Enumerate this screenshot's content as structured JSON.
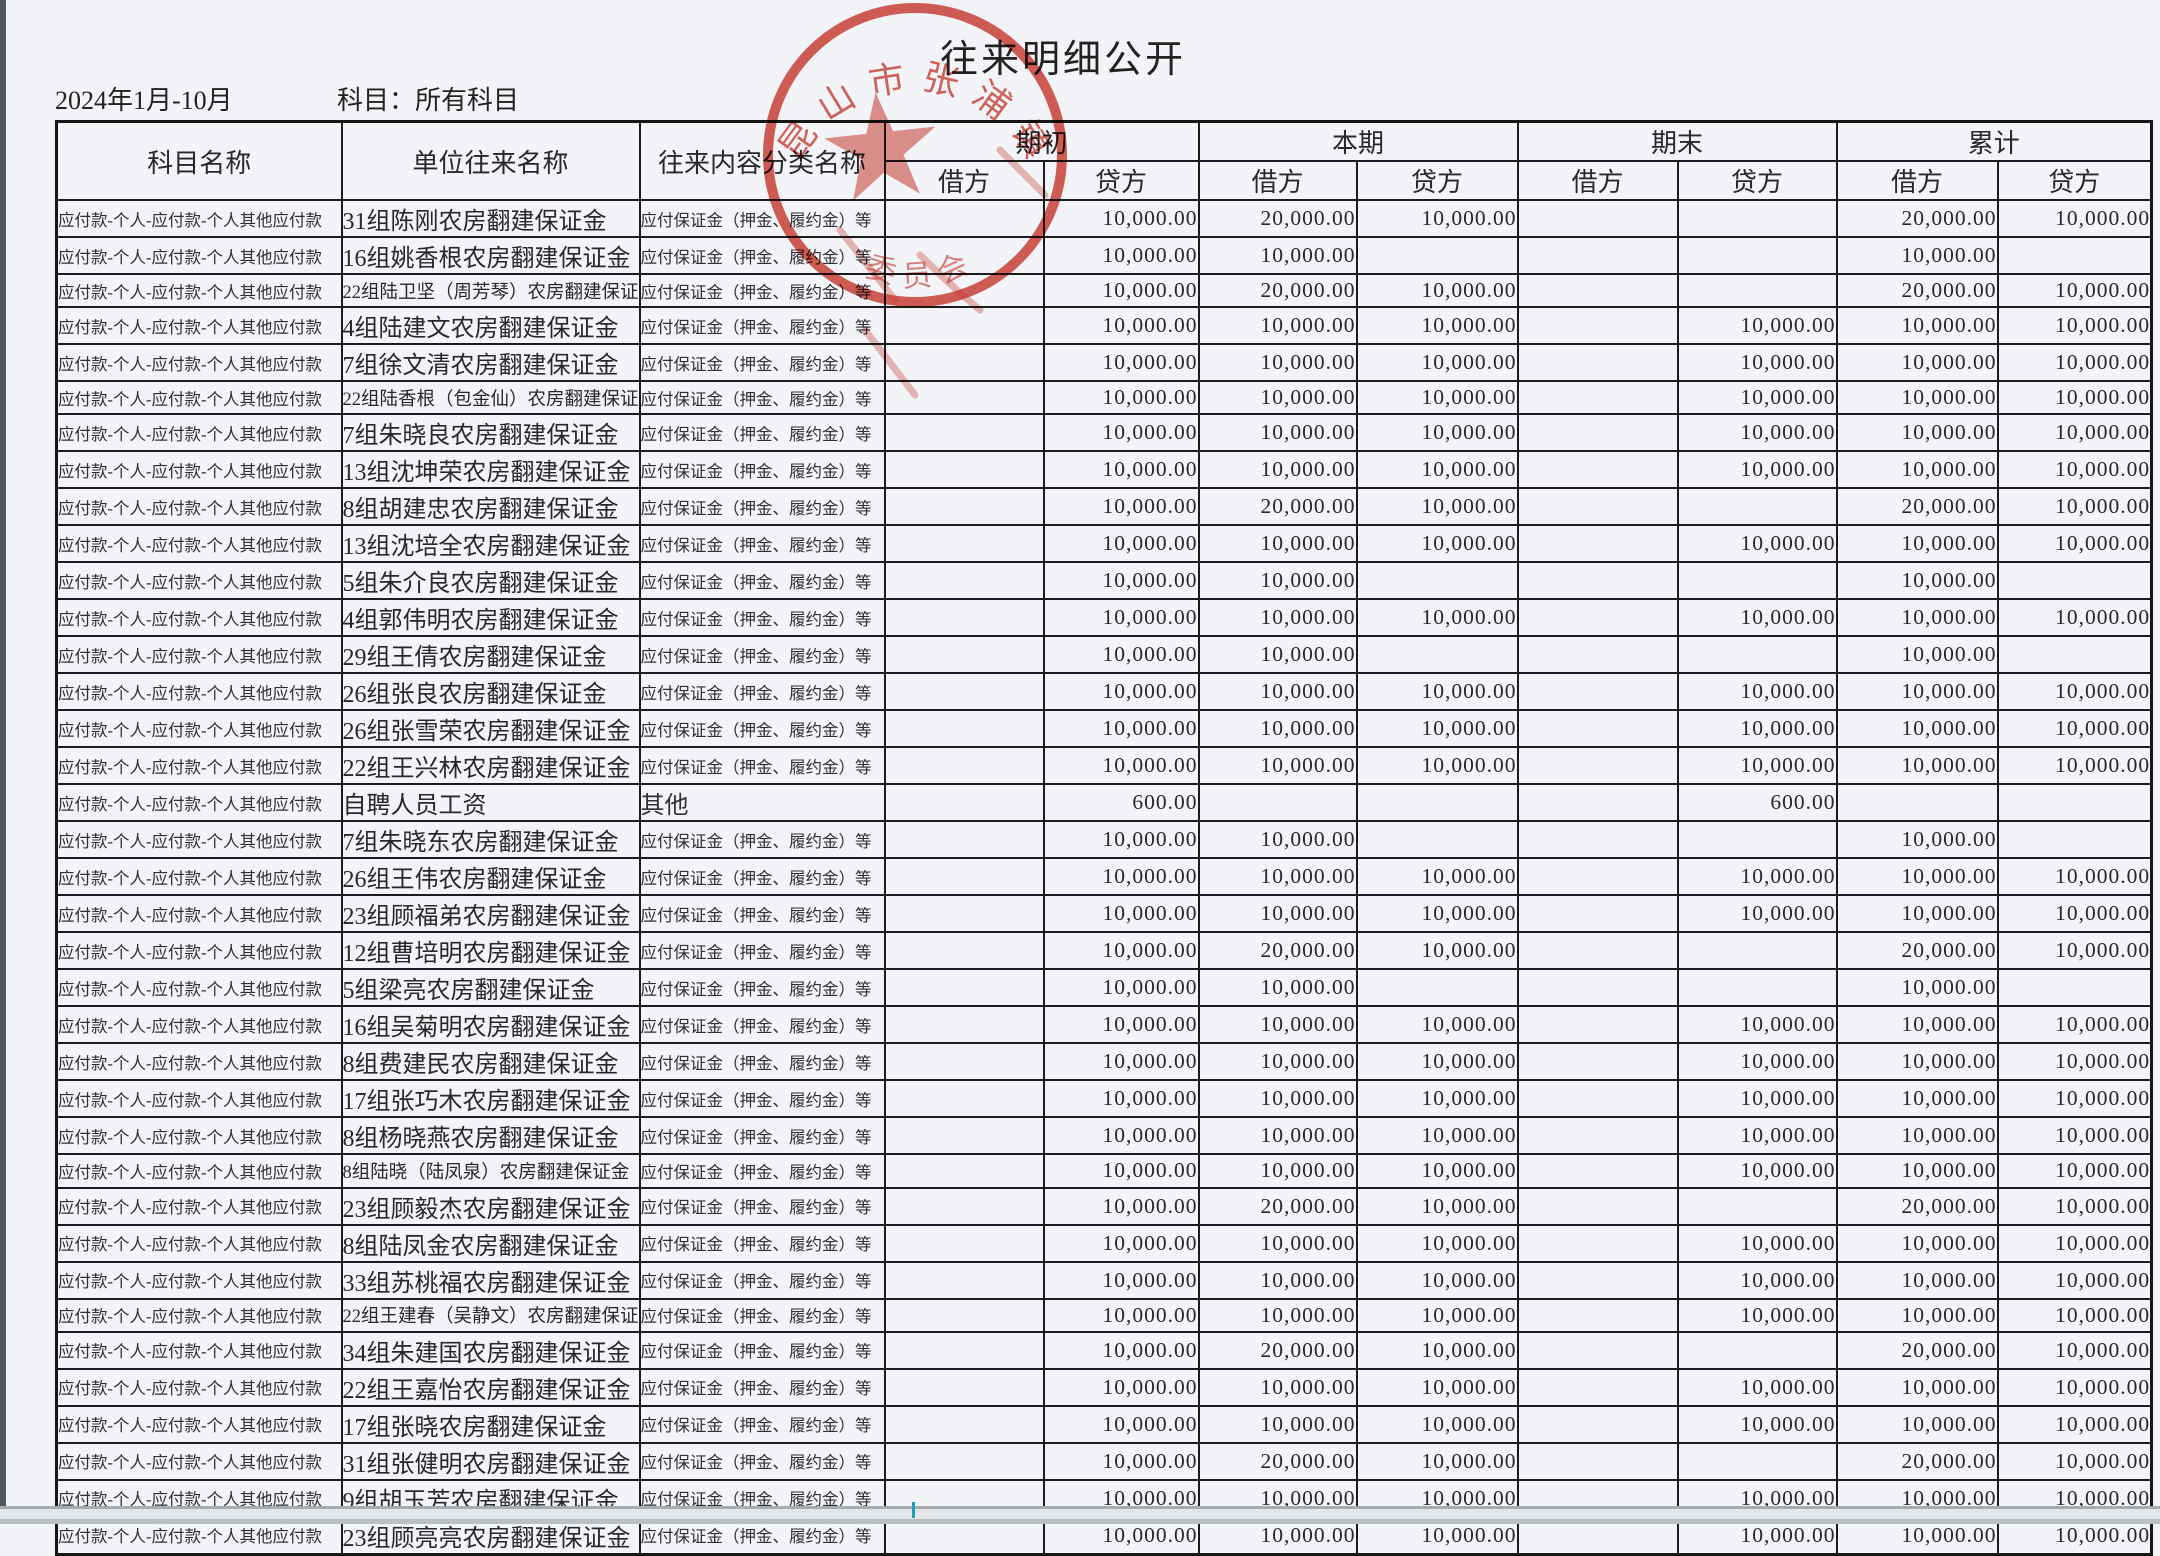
{
  "page": {
    "title": "往来明细公开",
    "period": "2024年1月-10月",
    "subject_filter": "科目：所有科目"
  },
  "stamp": {
    "arc_text_top": "昆山市张浦镇",
    "arc_text_bottom": "委员会",
    "color": "#cf3b30"
  },
  "table": {
    "columns": {
      "subject": "科目名称",
      "unit": "单位往来名称",
      "category": "往来内容分类名称",
      "groups": [
        {
          "label": "期初"
        },
        {
          "label": "本期"
        },
        {
          "label": "期末"
        },
        {
          "label": "累计"
        }
      ],
      "debit": "借方",
      "credit": "贷方"
    },
    "rows": [
      {
        "subject": "应付款-个人-应付款-个人其他应付款",
        "unit": "31组陈刚农房翻建保证金",
        "category": "应付保证金（押金、履约金）等",
        "values": [
          "",
          "10,000.00",
          "20,000.00",
          "10,000.00",
          "",
          "",
          "20,000.00",
          "10,000.00"
        ]
      },
      {
        "subject": "应付款-个人-应付款-个人其他应付款",
        "unit": "16组姚香根农房翻建保证金",
        "category": "应付保证金（押金、履约金）等",
        "values": [
          "",
          "10,000.00",
          "10,000.00",
          "",
          "",
          "",
          "10,000.00",
          ""
        ]
      },
      {
        "subject": "应付款-个人-应付款-个人其他应付款",
        "unit": "22组陆卫坚（周芳琴）农房翻建保证金",
        "category": "应付保证金（押金、履约金）等",
        "small": true,
        "values": [
          "",
          "10,000.00",
          "20,000.00",
          "10,000.00",
          "",
          "",
          "20,000.00",
          "10,000.00"
        ]
      },
      {
        "subject": "应付款-个人-应付款-个人其他应付款",
        "unit": "4组陆建文农房翻建保证金",
        "category": "应付保证金（押金、履约金）等",
        "values": [
          "",
          "10,000.00",
          "10,000.00",
          "10,000.00",
          "",
          "10,000.00",
          "10,000.00",
          "10,000.00"
        ]
      },
      {
        "subject": "应付款-个人-应付款-个人其他应付款",
        "unit": "7组徐文清农房翻建保证金",
        "category": "应付保证金（押金、履约金）等",
        "values": [
          "",
          "10,000.00",
          "10,000.00",
          "10,000.00",
          "",
          "10,000.00",
          "10,000.00",
          "10,000.00"
        ]
      },
      {
        "subject": "应付款-个人-应付款-个人其他应付款",
        "unit": "22组陆香根（包金仙）农房翻建保证金",
        "category": "应付保证金（押金、履约金）等",
        "small": true,
        "values": [
          "",
          "10,000.00",
          "10,000.00",
          "10,000.00",
          "",
          "10,000.00",
          "10,000.00",
          "10,000.00"
        ]
      },
      {
        "subject": "应付款-个人-应付款-个人其他应付款",
        "unit": "7组朱晓良农房翻建保证金",
        "category": "应付保证金（押金、履约金）等",
        "values": [
          "",
          "10,000.00",
          "10,000.00",
          "10,000.00",
          "",
          "10,000.00",
          "10,000.00",
          "10,000.00"
        ]
      },
      {
        "subject": "应付款-个人-应付款-个人其他应付款",
        "unit": "13组沈坤荣农房翻建保证金",
        "category": "应付保证金（押金、履约金）等",
        "values": [
          "",
          "10,000.00",
          "10,000.00",
          "10,000.00",
          "",
          "10,000.00",
          "10,000.00",
          "10,000.00"
        ]
      },
      {
        "subject": "应付款-个人-应付款-个人其他应付款",
        "unit": "8组胡建忠农房翻建保证金",
        "category": "应付保证金（押金、履约金）等",
        "values": [
          "",
          "10,000.00",
          "20,000.00",
          "10,000.00",
          "",
          "",
          "20,000.00",
          "10,000.00"
        ]
      },
      {
        "subject": "应付款-个人-应付款-个人其他应付款",
        "unit": "13组沈培全农房翻建保证金",
        "category": "应付保证金（押金、履约金）等",
        "values": [
          "",
          "10,000.00",
          "10,000.00",
          "10,000.00",
          "",
          "10,000.00",
          "10,000.00",
          "10,000.00"
        ]
      },
      {
        "subject": "应付款-个人-应付款-个人其他应付款",
        "unit": "5组朱介良农房翻建保证金",
        "category": "应付保证金（押金、履约金）等",
        "values": [
          "",
          "10,000.00",
          "10,000.00",
          "",
          "",
          "",
          "10,000.00",
          ""
        ]
      },
      {
        "subject": "应付款-个人-应付款-个人其他应付款",
        "unit": "4组郭伟明农房翻建保证金",
        "category": "应付保证金（押金、履约金）等",
        "values": [
          "",
          "10,000.00",
          "10,000.00",
          "10,000.00",
          "",
          "10,000.00",
          "10,000.00",
          "10,000.00"
        ]
      },
      {
        "subject": "应付款-个人-应付款-个人其他应付款",
        "unit": "29组王倩农房翻建保证金",
        "category": "应付保证金（押金、履约金）等",
        "values": [
          "",
          "10,000.00",
          "10,000.00",
          "",
          "",
          "",
          "10,000.00",
          ""
        ]
      },
      {
        "subject": "应付款-个人-应付款-个人其他应付款",
        "unit": "26组张良农房翻建保证金",
        "category": "应付保证金（押金、履约金）等",
        "values": [
          "",
          "10,000.00",
          "10,000.00",
          "10,000.00",
          "",
          "10,000.00",
          "10,000.00",
          "10,000.00"
        ]
      },
      {
        "subject": "应付款-个人-应付款-个人其他应付款",
        "unit": "26组张雪荣农房翻建保证金",
        "category": "应付保证金（押金、履约金）等",
        "values": [
          "",
          "10,000.00",
          "10,000.00",
          "10,000.00",
          "",
          "10,000.00",
          "10,000.00",
          "10,000.00"
        ]
      },
      {
        "subject": "应付款-个人-应付款-个人其他应付款",
        "unit": "22组王兴林农房翻建保证金",
        "category": "应付保证金（押金、履约金）等",
        "values": [
          "",
          "10,000.00",
          "10,000.00",
          "10,000.00",
          "",
          "10,000.00",
          "10,000.00",
          "10,000.00"
        ]
      },
      {
        "subject": "应付款-个人-应付款-个人其他应付款",
        "unit": "自聘人员工资",
        "category": "其他",
        "values": [
          "",
          "600.00",
          "",
          "",
          "",
          "600.00",
          "",
          ""
        ]
      },
      {
        "subject": "应付款-个人-应付款-个人其他应付款",
        "unit": "7组朱晓东农房翻建保证金",
        "category": "应付保证金（押金、履约金）等",
        "values": [
          "",
          "10,000.00",
          "10,000.00",
          "",
          "",
          "",
          "10,000.00",
          ""
        ]
      },
      {
        "subject": "应付款-个人-应付款-个人其他应付款",
        "unit": "26组王伟农房翻建保证金",
        "category": "应付保证金（押金、履约金）等",
        "values": [
          "",
          "10,000.00",
          "10,000.00",
          "10,000.00",
          "",
          "10,000.00",
          "10,000.00",
          "10,000.00"
        ]
      },
      {
        "subject": "应付款-个人-应付款-个人其他应付款",
        "unit": "23组顾福弟农房翻建保证金",
        "category": "应付保证金（押金、履约金）等",
        "values": [
          "",
          "10,000.00",
          "10,000.00",
          "10,000.00",
          "",
          "10,000.00",
          "10,000.00",
          "10,000.00"
        ]
      },
      {
        "subject": "应付款-个人-应付款-个人其他应付款",
        "unit": "12组曹培明农房翻建保证金",
        "category": "应付保证金（押金、履约金）等",
        "values": [
          "",
          "10,000.00",
          "20,000.00",
          "10,000.00",
          "",
          "",
          "20,000.00",
          "10,000.00"
        ]
      },
      {
        "subject": "应付款-个人-应付款-个人其他应付款",
        "unit": "5组梁亮农房翻建保证金",
        "category": "应付保证金（押金、履约金）等",
        "values": [
          "",
          "10,000.00",
          "10,000.00",
          "",
          "",
          "",
          "10,000.00",
          ""
        ]
      },
      {
        "subject": "应付款-个人-应付款-个人其他应付款",
        "unit": "16组吴菊明农房翻建保证金",
        "category": "应付保证金（押金、履约金）等",
        "values": [
          "",
          "10,000.00",
          "10,000.00",
          "10,000.00",
          "",
          "10,000.00",
          "10,000.00",
          "10,000.00"
        ]
      },
      {
        "subject": "应付款-个人-应付款-个人其他应付款",
        "unit": "8组费建民农房翻建保证金",
        "category": "应付保证金（押金、履约金）等",
        "values": [
          "",
          "10,000.00",
          "10,000.00",
          "10,000.00",
          "",
          "10,000.00",
          "10,000.00",
          "10,000.00"
        ]
      },
      {
        "subject": "应付款-个人-应付款-个人其他应付款",
        "unit": "17组张巧木农房翻建保证金",
        "category": "应付保证金（押金、履约金）等",
        "values": [
          "",
          "10,000.00",
          "10,000.00",
          "10,000.00",
          "",
          "10,000.00",
          "10,000.00",
          "10,000.00"
        ]
      },
      {
        "subject": "应付款-个人-应付款-个人其他应付款",
        "unit": "8组杨晓燕农房翻建保证金",
        "category": "应付保证金（押金、履约金）等",
        "values": [
          "",
          "10,000.00",
          "10,000.00",
          "10,000.00",
          "",
          "10,000.00",
          "10,000.00",
          "10,000.00"
        ]
      },
      {
        "subject": "应付款-个人-应付款-个人其他应付款",
        "unit": "8组陆晓（陆凤泉）农房翻建保证金",
        "category": "应付保证金（押金、履约金）等",
        "small": true,
        "values": [
          "",
          "10,000.00",
          "10,000.00",
          "10,000.00",
          "",
          "10,000.00",
          "10,000.00",
          "10,000.00"
        ]
      },
      {
        "subject": "应付款-个人-应付款-个人其他应付款",
        "unit": "23组顾毅杰农房翻建保证金",
        "category": "应付保证金（押金、履约金）等",
        "values": [
          "",
          "10,000.00",
          "20,000.00",
          "10,000.00",
          "",
          "",
          "20,000.00",
          "10,000.00"
        ]
      },
      {
        "subject": "应付款-个人-应付款-个人其他应付款",
        "unit": "8组陆凤金农房翻建保证金",
        "category": "应付保证金（押金、履约金）等",
        "values": [
          "",
          "10,000.00",
          "10,000.00",
          "10,000.00",
          "",
          "10,000.00",
          "10,000.00",
          "10,000.00"
        ]
      },
      {
        "subject": "应付款-个人-应付款-个人其他应付款",
        "unit": "33组苏桃福农房翻建保证金",
        "category": "应付保证金（押金、履约金）等",
        "values": [
          "",
          "10,000.00",
          "10,000.00",
          "10,000.00",
          "",
          "10,000.00",
          "10,000.00",
          "10,000.00"
        ]
      },
      {
        "subject": "应付款-个人-应付款-个人其他应付款",
        "unit": "22组王建春（吴静文）农房翻建保证金",
        "category": "应付保证金（押金、履约金）等",
        "small": true,
        "values": [
          "",
          "10,000.00",
          "10,000.00",
          "10,000.00",
          "",
          "10,000.00",
          "10,000.00",
          "10,000.00"
        ]
      },
      {
        "subject": "应付款-个人-应付款-个人其他应付款",
        "unit": "34组朱建国农房翻建保证金",
        "category": "应付保证金（押金、履约金）等",
        "values": [
          "",
          "10,000.00",
          "20,000.00",
          "10,000.00",
          "",
          "",
          "20,000.00",
          "10,000.00"
        ]
      },
      {
        "subject": "应付款-个人-应付款-个人其他应付款",
        "unit": "22组王嘉怡农房翻建保证金",
        "category": "应付保证金（押金、履约金）等",
        "values": [
          "",
          "10,000.00",
          "10,000.00",
          "10,000.00",
          "",
          "10,000.00",
          "10,000.00",
          "10,000.00"
        ]
      },
      {
        "subject": "应付款-个人-应付款-个人其他应付款",
        "unit": "17组张晓农房翻建保证金",
        "category": "应付保证金（押金、履约金）等",
        "values": [
          "",
          "10,000.00",
          "10,000.00",
          "10,000.00",
          "",
          "10,000.00",
          "10,000.00",
          "10,000.00"
        ]
      },
      {
        "subject": "应付款-个人-应付款-个人其他应付款",
        "unit": "31组张健明农房翻建保证金",
        "category": "应付保证金（押金、履约金）等",
        "values": [
          "",
          "10,000.00",
          "20,000.00",
          "10,000.00",
          "",
          "",
          "20,000.00",
          "10,000.00"
        ]
      },
      {
        "subject": "应付款-个人-应付款-个人其他应付款",
        "unit": "9组胡玉芳农房翻建保证金",
        "category": "应付保证金（押金、履约金）等",
        "values": [
          "",
          "10,000.00",
          "10,000.00",
          "10,000.00",
          "",
          "10,000.00",
          "10,000.00",
          "10,000.00"
        ]
      },
      {
        "subject": "应付款-个人-应付款-个人其他应付款",
        "unit": "23组顾亮亮农房翻建保证金",
        "category": "应付保证金（押金、履约金）等",
        "values": [
          "",
          "10,000.00",
          "10,000.00",
          "10,000.00",
          "",
          "10,000.00",
          "10,000.00",
          "10,000.00"
        ]
      }
    ]
  }
}
